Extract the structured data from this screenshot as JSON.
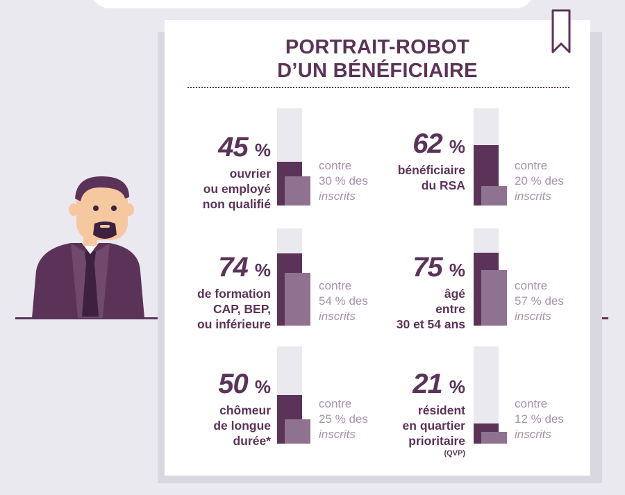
{
  "title": {
    "line1": "PORTRAIT-ROBOT",
    "line2": "D’UN BÉNÉFICIAIRE"
  },
  "chart_data": {
    "type": "bar",
    "title": "PORTRAIT-ROBOT D’UN BÉNÉFICIAIRE",
    "ylim": [
      0,
      100
    ],
    "stats": [
      {
        "value": 45,
        "value_label": "45",
        "unit": "%",
        "description": [
          "ouvrier",
          "ou employé",
          "non qualifié"
        ],
        "note": "",
        "compare_value": 30,
        "compare": [
          "contre",
          "30 % des",
          "inscrits"
        ]
      },
      {
        "value": 62,
        "value_label": "62",
        "unit": "%",
        "description": [
          "bénéficiaire",
          "du RSA"
        ],
        "note": "",
        "compare_value": 20,
        "compare": [
          "contre",
          "20 % des",
          "inscrits"
        ]
      },
      {
        "value": 74,
        "value_label": "74",
        "unit": "%",
        "description": [
          "de formation",
          "CAP, BEP,",
          "ou inférieure"
        ],
        "note": "",
        "compare_value": 54,
        "compare": [
          "contre",
          "54 % des",
          "inscrits"
        ]
      },
      {
        "value": 75,
        "value_label": "75",
        "unit": "%",
        "description": [
          "âgé",
          "entre",
          "30 et 54 ans"
        ],
        "note": "",
        "compare_value": 57,
        "compare": [
          "contre",
          "57 % des",
          "inscrits"
        ]
      },
      {
        "value": 50,
        "value_label": "50",
        "unit": "%",
        "description": [
          "chômeur",
          "de longue",
          "durée*"
        ],
        "note": "",
        "compare_value": 25,
        "compare": [
          "contre",
          "25 % des",
          "inscrits"
        ]
      },
      {
        "value": 21,
        "value_label": "21",
        "unit": "%",
        "description": [
          "résident",
          "en quartier",
          "prioritaire"
        ],
        "note": "(QVP)",
        "compare_value": 12,
        "compare": [
          "contre",
          "12 % des",
          "inscrits"
        ]
      }
    ]
  },
  "colors": {
    "primary": "#5b3358",
    "secondary": "#8f7290",
    "track": "#ebe9f0",
    "muted_text": "#a891a9",
    "skin": "#f6c8a0"
  },
  "icons": {
    "bookmark": "bookmark-icon",
    "person": "man-with-tie-illustration"
  }
}
